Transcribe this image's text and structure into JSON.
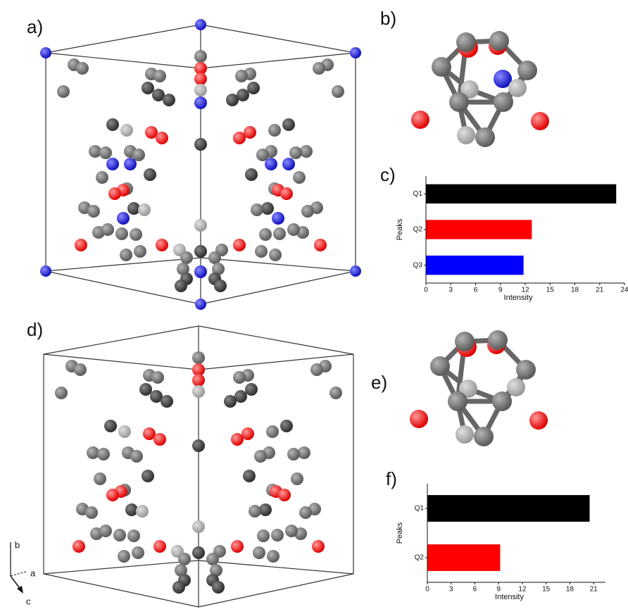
{
  "panel_labels": [
    "a)",
    "b)",
    "c)",
    "d)",
    "e)",
    "f)"
  ],
  "axis_triad": [
    "b",
    "a",
    "c"
  ],
  "chart_data": [
    {
      "type": "bar",
      "orientation": "horizontal",
      "categories": [
        "Q1",
        "Q2",
        "Q3"
      ],
      "values": [
        23,
        12.8,
        11.8
      ],
      "colors": [
        "#000000",
        "#ff0000",
        "#0000ff"
      ],
      "x_label": "Intensity",
      "y_label": "Peaks",
      "xlim": [
        0,
        24
      ],
      "xticks": [
        0,
        3,
        6,
        9,
        12,
        15,
        18,
        21,
        24
      ]
    },
    {
      "type": "bar",
      "orientation": "horizontal",
      "categories": [
        "Q1",
        "Q2"
      ],
      "values": [
        20.5,
        9.2
      ],
      "colors": [
        "#000000",
        "#ff0000"
      ],
      "x_label": "Intensity",
      "y_label": "Peaks",
      "xlim": [
        0,
        22.5
      ],
      "xticks": [
        0,
        3,
        6,
        9,
        12,
        15,
        18,
        21
      ]
    }
  ]
}
